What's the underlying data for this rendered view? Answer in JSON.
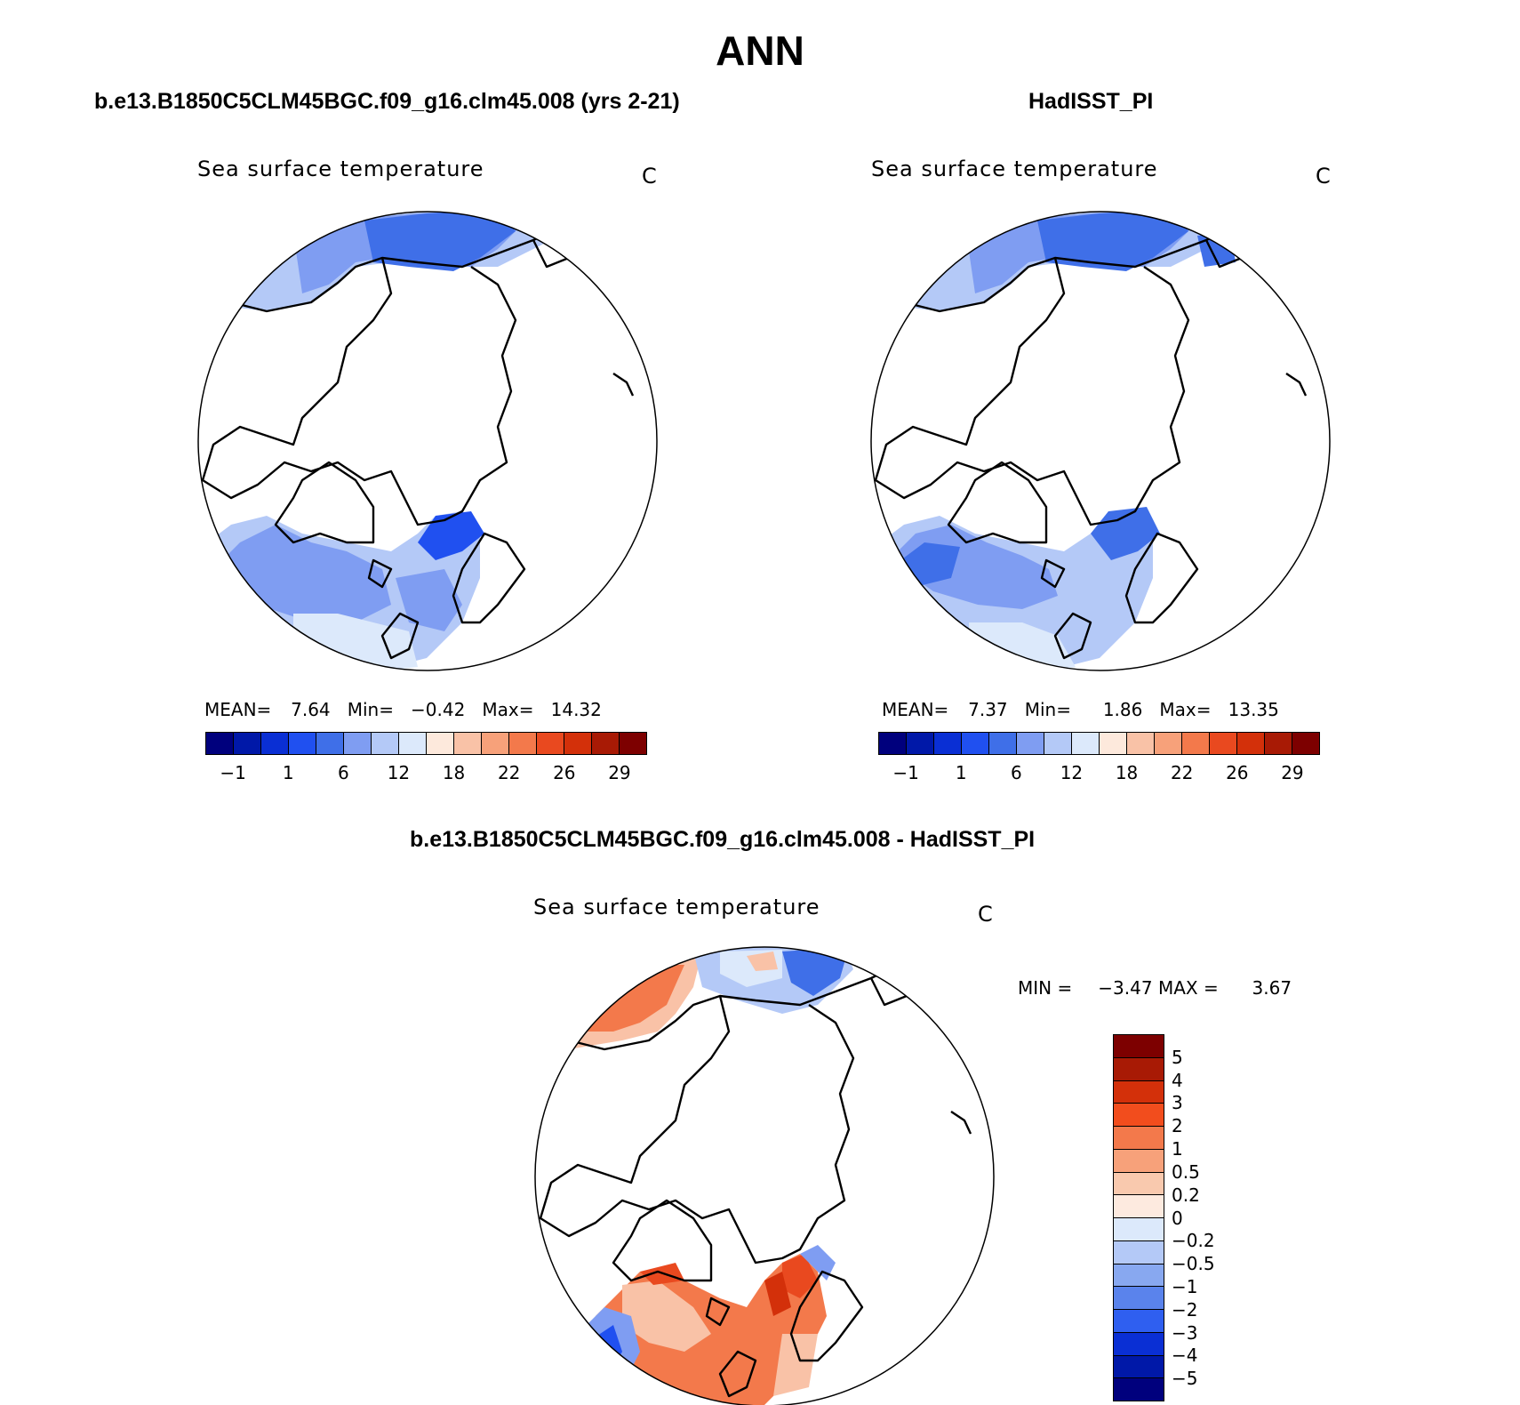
{
  "title": "ANN",
  "panel_top_left": {
    "case_title": "b.e13.B1850C5CLM45BGC.f09_g16.clm45.008 (yrs 2-21)",
    "variable": "Sea surface temperature",
    "units": "C",
    "stats": {
      "mean_label": "MEAN=",
      "mean": "7.64",
      "min_label": "Min=",
      "min": "−0.42",
      "max_label": "Max=",
      "max": "14.32"
    }
  },
  "panel_top_right": {
    "case_title": "HadISST_PI",
    "variable": "Sea surface temperature",
    "units": "C",
    "stats": {
      "mean_label": "MEAN=",
      "mean": "7.37",
      "min_label": "Min=",
      "min": "1.86",
      "max_label": "Max=",
      "max": "13.35"
    }
  },
  "panel_diff": {
    "case_title": "b.e13.B1850C5CLM45BGC.f09_g16.clm45.008 - HadISST_PI",
    "variable": "Sea surface temperature",
    "units": "C",
    "stats": {
      "min_label": "MIN =",
      "min": "−3.47",
      "max_label": "MAX =",
      "max": "3.67"
    }
  },
  "horizontal_colorbar": {
    "colors": [
      "#00007d",
      "#0018a8",
      "#0a2fd4",
      "#2050f0",
      "#3f6fe8",
      "#7f9df2",
      "#b4c9f7",
      "#dce9fb",
      "#fde9dc",
      "#f9c2a7",
      "#f7a17a",
      "#f3794b",
      "#e9491f",
      "#d3300a",
      "#a81a05",
      "#7d0000"
    ],
    "tick_labels": [
      "−1",
      "1",
      "6",
      "12",
      "18",
      "22",
      "26",
      "29"
    ]
  },
  "vertical_colorbar": {
    "colors_top_to_bottom": [
      "#7d0000",
      "#a81a05",
      "#d3300a",
      "#f24d1d",
      "#f3794b",
      "#f7a17a",
      "#f9c9ae",
      "#fdeadf",
      "#dce9fb",
      "#b4c9f7",
      "#88a8f0",
      "#5a83ec",
      "#2f5ff0",
      "#0a2fd4",
      "#0018a8",
      "#00007d"
    ],
    "tick_labels": [
      "5",
      "4",
      "3",
      "2",
      "1",
      "0.5",
      "0.2",
      "0",
      "−0.2",
      "−0.5",
      "−1",
      "−2",
      "−3",
      "−4",
      "−5"
    ]
  }
}
